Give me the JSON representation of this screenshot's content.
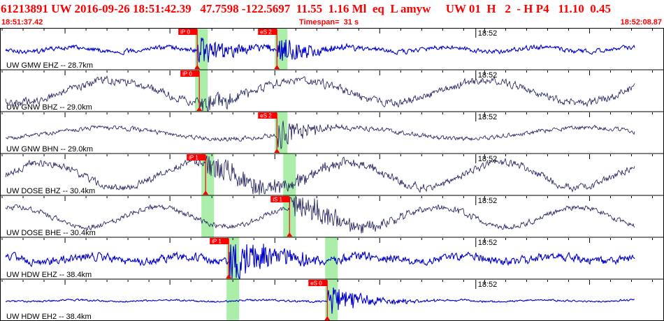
{
  "header": {
    "title": "61213891 UW 2016-09-26 18:51:42.39   47.7598 -122.5697  11.55  1.16 Ml  eq  L amyw     UW 01  H   2  - H P4   11.10  0.45",
    "start_time": "18:51:37.42",
    "timespan": "Timespan=  31 s",
    "end_time": "18:52:08.87"
  },
  "colors": {
    "trace_blue": "#0000cc",
    "trace_navy": "#1a1a5a",
    "pick_red": "#ff0000",
    "window_green": "#aaeeaa",
    "frame_black": "#000000"
  },
  "chart_data": {
    "type": "line",
    "x_unit": "seconds since 18:51:37.42",
    "x_range": [
      0,
      31.45
    ],
    "time_tick": {
      "label": "18:52",
      "t": 22.58
    },
    "channels": [
      {
        "label": "UW GMW EHZ -- 28.7km",
        "color": "blue",
        "picks": [
          {
            "label": "iP 0",
            "t": 9.3
          },
          {
            "label": "eS 2",
            "t": 13.1
          }
        ],
        "windows": [
          [
            9.2,
            9.8
          ],
          [
            13.0,
            13.6
          ]
        ]
      },
      {
        "label": "UW GNW BHZ -- 29.0km",
        "color": "navy",
        "picks": [
          {
            "label": "iP 0",
            "t": 9.4
          }
        ],
        "windows": [
          [
            9.2,
            9.8
          ]
        ]
      },
      {
        "label": "UW GNW BHN -- 29.0km",
        "color": "navy",
        "picks": [
          {
            "label": "eS 2",
            "t": 13.1
          }
        ],
        "windows": [
          [
            13.0,
            13.6
          ]
        ]
      },
      {
        "label": "UW DOSE BHZ -- 30.4km",
        "color": "navy",
        "picks": [
          {
            "label": "iP 1",
            "t": 9.7
          }
        ],
        "windows": [
          [
            9.5,
            10.1
          ],
          [
            13.4,
            14.0
          ]
        ]
      },
      {
        "label": "UW DOSE BHE -- 30.4km",
        "color": "navy",
        "picks": [
          {
            "label": "iS 1",
            "t": 13.7
          }
        ],
        "windows": [
          [
            9.5,
            10.1
          ],
          [
            13.4,
            14.0
          ]
        ]
      },
      {
        "label": "UW HDW EHZ -- 38.4km",
        "color": "blue",
        "picks": [
          {
            "label": "iP 1",
            "t": 10.8
          }
        ],
        "windows": [
          [
            10.7,
            11.3
          ],
          [
            15.4,
            16.0
          ]
        ]
      },
      {
        "label": "UW HDW EH2 -- 38.4km",
        "color": "blue",
        "picks": [
          {
            "label": "eS 0",
            "t": 15.5
          }
        ],
        "windows": [
          [
            10.7,
            11.3
          ],
          [
            15.4,
            16.0
          ]
        ]
      }
    ]
  }
}
